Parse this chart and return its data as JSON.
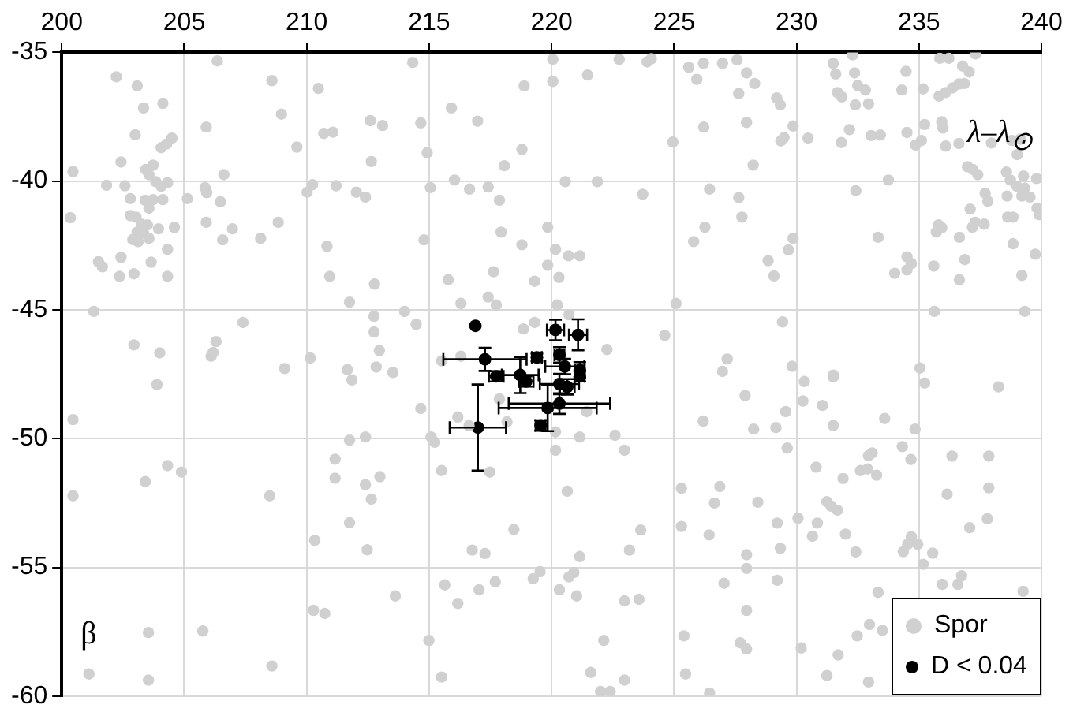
{
  "chart_data": {
    "type": "scatter",
    "xlabel": "λ–λ$_{⊙}$",
    "ylabel": "β",
    "xlim": [
      200,
      240
    ],
    "ylim": [
      -60,
      -35
    ],
    "xticks": [
      200,
      205,
      210,
      215,
      220,
      225,
      230,
      235,
      240
    ],
    "yticks": [
      -35,
      -40,
      -45,
      -50,
      -55,
      -60
    ],
    "grid": true,
    "legend": "bottom right",
    "marker": "circle",
    "series": [
      {
        "name": "Spor",
        "color": "#d0d0d0",
        "x": [
          206.35,
          202.23,
          203.08,
          208.58,
          210.48,
          203.34,
          204.13,
          208.97,
          205.9,
          203.0,
          204.06,
          204.28,
          204.5,
          209.6,
          210.7,
          211.07,
          212.6,
          213.1,
          212.64,
          200.46,
          202.42,
          203.43,
          203.73,
          203.56,
          203.84,
          204.06,
          204.32,
          206.62,
          201.83,
          202.58,
          202.8,
          203.4,
          203.73,
          204.13,
          203.56,
          205.13,
          205.85,
          205.92,
          206.48,
          210.02,
          210.24,
          211.2,
          212.03,
          212.4,
          200.35,
          202.8,
          203.03,
          203.25,
          203.5,
          203.95,
          203.08,
          203.34,
          203.56,
          202.9,
          203.12,
          204.6,
          205.9,
          206.97,
          206.57,
          208.12,
          208.84,
          210.83,
          201.5,
          201.66,
          202.42,
          203.65,
          204.32,
          202.36,
          202.95,
          204.32,
          210.94,
          212.77,
          211.75,
          201.31,
          212.75,
          212.75,
          212.97,
          207.4,
          202.95,
          204.0,
          206.3,
          206.18,
          206.1,
          209.1,
          210.15,
          211.66,
          212.84,
          213.52,
          214.33,
          220.05,
          222.76,
          223.9,
          224.07,
          221.47,
          220.05,
          218.88,
          225.6,
          226.2,
          226.98,
          225.93,
          215.91,
          214.66,
          216.98,
          226.21,
          224.95,
          214.92,
          218.79,
          218.07,
          215.05,
          216.04,
          216.65,
          217.41,
          217.87,
          220.56,
          221.87,
          223.72,
          226.45,
          217.94,
          214.79,
          219.84,
          218.79,
          220.16,
          220.69,
          221.15,
          219.84,
          220.3,
          217.63,
          215.78,
          219.31,
          216.3,
          217.41,
          217.74,
          220.23,
          226.26,
          225.8,
          225.08,
          214.0,
          214.47,
          220.71,
          218.85,
          219.31,
          224.62,
          222.26,
          215.51,
          216.3,
          227.17,
          226.98,
          227.57,
          227.96,
          228.29,
          227.64,
          229.19,
          229.34,
          227.96,
          229.86,
          229.49,
          229.36,
          230.47,
          228.23,
          231.5,
          232.29,
          231.6,
          232.37,
          232.5,
          232.81,
          231.67,
          231.85,
          232.4,
          232.94,
          234.3,
          234.47,
          232.16,
          231.83,
          233.05,
          233.42,
          234.51,
          235.1,
          234.86,
          235.23,
          235.93,
          235.98,
          236.09,
          236.63,
          235.17,
          235.82,
          236.09,
          236.37,
          236.63,
          236.85,
          235.85,
          236.22,
          236.78,
          237.05,
          237.31,
          237.96,
          238.79,
          239.14,
          239.01,
          236.98,
          237.2,
          237.4,
          238.57,
          238.73,
          239.27,
          239.8,
          239.0,
          239.32,
          239.2,
          239.53,
          238.6,
          239.82,
          239.9,
          237.7,
          237.81,
          237.09,
          233.75,
          232.42,
          227.64,
          227.77,
          233.33,
          229.86,
          229.67,
          228.84,
          229.08,
          234.51,
          234.69,
          234.51,
          234.01,
          235.8,
          235.93,
          235.71,
          236.65,
          237.18,
          237.29,
          237.66,
          236.87,
          236.65,
          235.6,
          238.62,
          238.84,
          238.84,
          239.75,
          239.2,
          235.63,
          239.32,
          229.43,
          229.82,
          235.04,
          231.5,
          203.89,
          200.46,
          211.85,
          203.41,
          204.32,
          204.89,
          200.46,
          208.49,
          211.75,
          212.4,
          211.16,
          211.16,
          212.4,
          212.99,
          212.64,
          211.75,
          210.33,
          212.47,
          213.62,
          210.28,
          210.74,
          203.54,
          205.76,
          201.11,
          203.54,
          208.58,
          214.66,
          216.17,
          217.87,
          218.18,
          216.63,
          215.08,
          215.23,
          220.16,
          220.16,
          221.15,
          222.59,
          222.98,
          221.43,
          226.19,
          215.51,
          217.48,
          220.64,
          225.3,
          226.87,
          226.65,
          225.3,
          226.43,
          223.64,
          223.18,
          218.46,
          216.76,
          217.28,
          221.15,
          220.91,
          220.71,
          227.04,
          219.53,
          219.25,
          215.64,
          216.17,
          217.04,
          217.7,
          220.32,
          221.02,
          222.98,
          223.57,
          214.99,
          222.13,
          225.4,
          215.51,
          221.6,
          222.98,
          222.0,
          222.39,
          225.47,
          226.45,
          227.9,
          230.32,
          231.5,
          230.26,
          231.06,
          229.56,
          228.25,
          229.16,
          231.5,
          233.6,
          234.84,
          235.23,
          238.25,
          229.62,
          230.8,
          231.9,
          232.61,
          232.9,
          233.27,
          232.94,
          233.09,
          234.32,
          234.67,
          236.35,
          237.85,
          236.15,
          237.85,
          237.79,
          237.07,
          228.42,
          231.24,
          231.41,
          231.67,
          229.21,
          230.06,
          230.85,
          230.65,
          232.0,
          232.42,
          229.34,
          234.69,
          234.54,
          234.95,
          234.36,
          235.56,
          235.17,
          227.96,
          227.96,
          229.21,
          233.33,
          235.95,
          236.59,
          236.74,
          239.25,
          227.96,
          227.7,
          227.96,
          230.19,
          232.98,
          233.51,
          232.48,
          231.7,
          231.24,
          232.94
        ],
        "values": [
          -35.33,
          -35.95,
          -36.3,
          -36.1,
          -36.4,
          -37.16,
          -36.98,
          -37.4,
          -37.9,
          -38.2,
          -38.7,
          -38.56,
          -38.33,
          -38.68,
          -38.15,
          -38.1,
          -37.65,
          -37.84,
          -39.24,
          -39.63,
          -39.26,
          -39.55,
          -39.38,
          -39.75,
          -40.02,
          -40.2,
          -40.06,
          -39.75,
          -40.16,
          -40.18,
          -40.68,
          -40.74,
          -40.72,
          -40.72,
          -41.05,
          -40.68,
          -40.25,
          -40.45,
          -40.8,
          -40.43,
          -40.14,
          -40.18,
          -40.43,
          -40.62,
          -41.42,
          -41.34,
          -41.4,
          -41.67,
          -41.7,
          -41.85,
          -41.98,
          -42.02,
          -42.22,
          -42.27,
          -42.35,
          -41.8,
          -41.6,
          -41.85,
          -42.28,
          -42.22,
          -41.6,
          -42.53,
          -43.13,
          -43.33,
          -42.96,
          -43.15,
          -42.65,
          -43.7,
          -43.6,
          -43.7,
          -43.7,
          -44.0,
          -44.7,
          -45.06,
          -45.25,
          -45.86,
          -46.58,
          -45.49,
          -46.36,
          -46.67,
          -46.23,
          -46.65,
          -46.8,
          -47.28,
          -46.87,
          -47.32,
          -47.22,
          -47.43,
          -35.39,
          -35.27,
          -35.27,
          -35.37,
          -35.25,
          -35.88,
          -36.13,
          -36.3,
          -35.58,
          -35.43,
          -35.43,
          -36.05,
          -37.16,
          -37.74,
          -37.67,
          -37.9,
          -38.48,
          -38.9,
          -38.77,
          -39.4,
          -40.25,
          -39.96,
          -40.31,
          -40.23,
          -40.74,
          -40.02,
          -40.02,
          -40.51,
          -40.31,
          -41.98,
          -42.28,
          -41.79,
          -42.47,
          -42.65,
          -42.9,
          -42.9,
          -43.27,
          -43.74,
          -43.52,
          -43.83,
          -43.89,
          -44.75,
          -44.5,
          -44.81,
          -44.81,
          -41.79,
          -42.35,
          -44.75,
          -45.06,
          -45.56,
          -45.19,
          -45.74,
          -45.49,
          -45.99,
          -46.54,
          -46.98,
          -46.8,
          -46.91,
          -47.39,
          -35.29,
          -35.8,
          -36.21,
          -36.6,
          -36.77,
          -37.04,
          -37.72,
          -37.86,
          -38.31,
          -38.44,
          -38.33,
          -39.38,
          -35.43,
          -35.1,
          -35.84,
          -35.8,
          -36.29,
          -36.46,
          -36.56,
          -36.73,
          -37.04,
          -37.0,
          -36.46,
          -35.74,
          -38.0,
          -38.5,
          -38.23,
          -38.21,
          -38.11,
          -38.42,
          -38.6,
          -37.8,
          -37.7,
          -37.94,
          -38.64,
          -38.54,
          -36.42,
          -36.7,
          -36.56,
          -36.38,
          -36.23,
          -36.21,
          -35.23,
          -35.23,
          -35.53,
          -35.76,
          -35.06,
          -38.52,
          -38.42,
          -38.37,
          -38.97,
          -39.44,
          -39.55,
          -39.75,
          -39.65,
          -39.96,
          -39.8,
          -39.9,
          -40.2,
          -40.27,
          -40.58,
          -40.62,
          -40.58,
          -41.05,
          -41.3,
          -40.47,
          -40.78,
          -41.09,
          -39.96,
          -40.37,
          -40.64,
          -41.4,
          -42.18,
          -42.22,
          -42.67,
          -43.09,
          -43.68,
          -42.94,
          -43.2,
          -43.45,
          -43.58,
          -41.7,
          -41.81,
          -41.98,
          -42.18,
          -41.79,
          -41.6,
          -41.67,
          -43.05,
          -43.83,
          -43.3,
          -41.4,
          -41.4,
          -42.43,
          -42.84,
          -43.66,
          -45.06,
          -45.06,
          -45.47,
          -47.19,
          -47.26,
          -47.53,
          -47.9,
          -49.26,
          -47.72,
          -51.67,
          -51.05,
          -51.3,
          -52.22,
          -52.22,
          -50.06,
          -49.94,
          -50.8,
          -51.54,
          -51.79,
          -51.48,
          -52.35,
          -53.27,
          -53.95,
          -54.32,
          -56.11,
          -56.67,
          -56.79,
          -57.53,
          -57.47,
          -59.14,
          -59.38,
          -58.83,
          -48.83,
          -49.16,
          -48.46,
          -49.35,
          -49.5,
          -49.94,
          -50.14,
          -49.74,
          -50.45,
          -49.94,
          -49.87,
          -50.45,
          -48.95,
          -49.32,
          -51.24,
          -51.3,
          -52.04,
          -51.93,
          -51.86,
          -52.5,
          -53.41,
          -53.74,
          -53.55,
          -54.33,
          -53.53,
          -54.33,
          -54.46,
          -54.58,
          -55.2,
          -55.37,
          -55.62,
          -55.17,
          -55.44,
          -55.68,
          -56.4,
          -55.87,
          -55.56,
          -55.87,
          -56.11,
          -56.3,
          -56.24,
          -57.84,
          -57.84,
          -57.66,
          -59.26,
          -59.08,
          -59.38,
          -59.82,
          -59.82,
          -59.14,
          -59.88,
          -48.33,
          -47.78,
          -47.6,
          -48.54,
          -48.71,
          -48.95,
          -49.63,
          -49.57,
          -49.49,
          -49.22,
          -49.63,
          -47.84,
          -47.99,
          -50.37,
          -51.11,
          -51.55,
          -51.24,
          -51.18,
          -51.42,
          -50.66,
          -50.56,
          -50.31,
          -50.81,
          -50.68,
          -50.68,
          -52.16,
          -51.91,
          -53.11,
          -53.46,
          -52.47,
          -52.45,
          -52.62,
          -52.78,
          -53.28,
          -53.09,
          -53.28,
          -53.79,
          -53.71,
          -54.4,
          -54.26,
          -53.81,
          -54.1,
          -54.1,
          -54.39,
          -54.45,
          -54.88,
          -54.51,
          -55.04,
          -55.5,
          -55.97,
          -55.66,
          -55.66,
          -55.33,
          -55.93,
          -56.67,
          -57.93,
          -58.17,
          -58.13,
          -57.22,
          -57.45,
          -57.66,
          -58.4,
          -59.2,
          -59.45
        ]
      },
      {
        "name": "D < 0.04",
        "color": "#000000",
        "x": [
          216.89,
          220.16,
          221.08,
          217.28,
          219.4,
          220.32,
          220.54,
          221.15,
          221.15,
          217.74,
          218.72,
          218.96,
          220.32,
          220.64,
          220.32,
          219.84,
          219.55,
          216.99
        ],
        "values": [
          -45.62,
          -45.78,
          -45.97,
          -46.92,
          -46.85,
          -46.75,
          -47.2,
          -47.33,
          -47.58,
          -47.58,
          -47.53,
          -47.78,
          -47.88,
          -47.99,
          -48.64,
          -48.81,
          -49.49,
          -49.57
        ],
        "errors": [
          null,
          0.4,
          0.6,
          0.45,
          0.15,
          0.3,
          0.3,
          0.3,
          0.2,
          0.2,
          0.7,
          0.2,
          0.4,
          0.3,
          0.4,
          0.9,
          0.2,
          1.67
        ],
        "xerrors": [
          null,
          0.35,
          0.37,
          1.7,
          0.2,
          0.2,
          0.8,
          0.2,
          0.2,
          0.3,
          0.75,
          0.3,
          0.8,
          0.3,
          2.07,
          2.0,
          0.2,
          1.15
        ]
      }
    ]
  }
}
